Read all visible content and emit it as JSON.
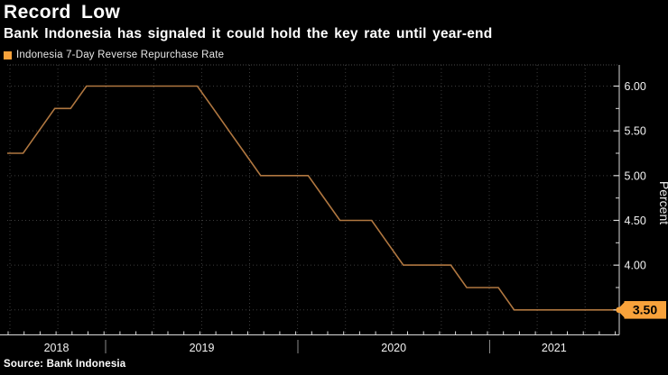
{
  "header": {
    "title": "Record Low",
    "subtitle": "Bank Indonesia has signaled it could hold the key rate until year-end"
  },
  "legend": {
    "label": "Indonesia 7-Day Reverse Repurchase Rate",
    "swatch_color": "#f8a23b"
  },
  "source": {
    "text": "Source: Bank Indonesia"
  },
  "colors": {
    "background": "#000000",
    "line": "#b07740",
    "accent_orange": "#f8a23b",
    "grid": "#3c3c3c",
    "axis": "#d9d9d9",
    "tick_label": "#f2f2f2",
    "year_separator": "#8a8a8a",
    "badge_text": "#000000"
  },
  "chart_data": {
    "type": "line",
    "title": "Record Low",
    "subtitle": "Bank Indonesia has signaled it could hold the key rate until year-end",
    "ylabel": "Percent",
    "xlabel": "",
    "grid": "dotted",
    "legend_position": "top-left",
    "ylim": [
      3.23,
      6.22
    ],
    "x_year_labels": [
      "2018",
      "2019",
      "2020",
      "2021"
    ],
    "ytick_labels": [
      "6.00",
      "5.50",
      "5.00",
      "4.50",
      "4.00",
      "3.50"
    ],
    "ytick_values": [
      6.0,
      5.5,
      5.0,
      4.5,
      4.0,
      3.5
    ],
    "ytick_minor_values": [
      5.75,
      5.25,
      4.75,
      4.25,
      3.75
    ],
    "last_value": 3.5,
    "last_value_label": "3.50",
    "series": [
      {
        "name": "Indonesia 7-Day Reverse Repurchase Rate",
        "color": "#b07740",
        "x": [
          "Jun 2018",
          "Jul 2018",
          "Aug 2018",
          "Sep 2018",
          "Oct 2018",
          "Nov 2018",
          "Dec 2018",
          "Jan 2019",
          "Feb 2019",
          "Mar 2019",
          "Apr 2019",
          "May 2019",
          "Jun 2019",
          "Jul 2019",
          "Aug 2019",
          "Sep 2019",
          "Oct 2019",
          "Nov 2019",
          "Dec 2019",
          "Jan 2020",
          "Feb 2020",
          "Mar 2020",
          "Apr 2020",
          "May 2020",
          "Jun 2020",
          "Jul 2020",
          "Aug 2020",
          "Sep 2020",
          "Oct 2020",
          "Nov 2020",
          "Dec 2020",
          "Jan 2021",
          "Feb 2021",
          "Mar 2021",
          "Apr 2021",
          "May 2021",
          "Jun 2021",
          "Jul 2021",
          "Aug 2021"
        ],
        "values": [
          5.25,
          5.25,
          5.5,
          5.75,
          5.75,
          6.0,
          6.0,
          6.0,
          6.0,
          6.0,
          6.0,
          6.0,
          6.0,
          5.75,
          5.5,
          5.25,
          5.0,
          5.0,
          5.0,
          5.0,
          4.75,
          4.5,
          4.5,
          4.5,
          4.25,
          4.0,
          4.0,
          4.0,
          4.0,
          3.75,
          3.75,
          3.75,
          3.5,
          3.5,
          3.5,
          3.5,
          3.5,
          3.5,
          3.5
        ]
      }
    ]
  }
}
